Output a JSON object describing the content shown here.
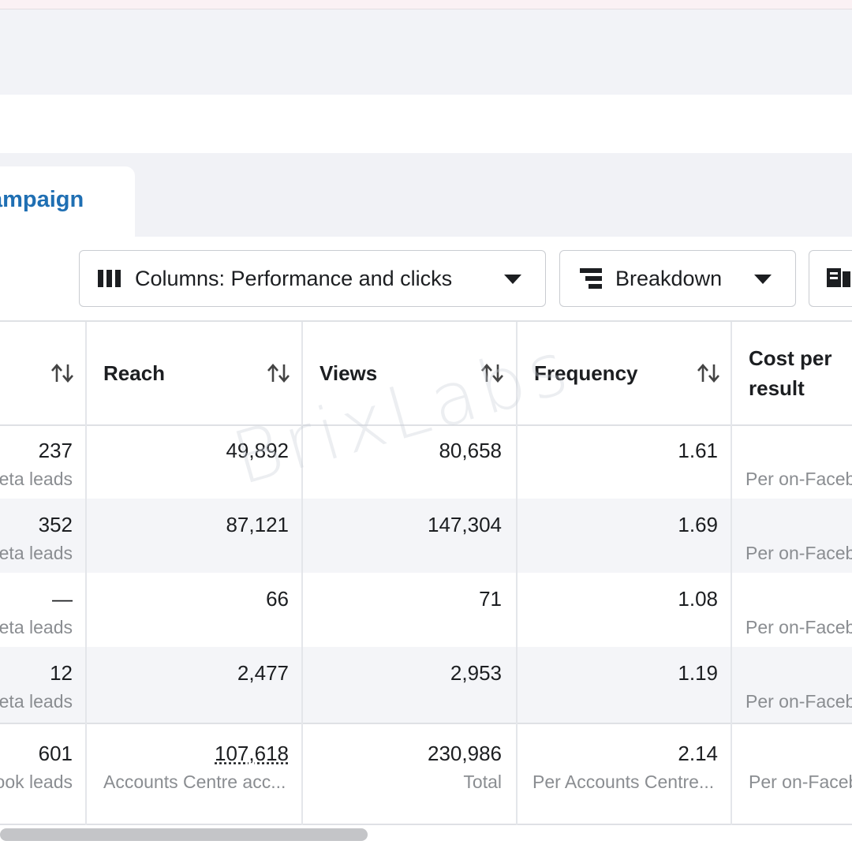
{
  "tab": {
    "label": "Campaign"
  },
  "toolbar": {
    "columns_label": "Columns: Performance and clicks",
    "breakdown_label": "Breakdown"
  },
  "table": {
    "headers": {
      "reach": "Reach",
      "views": "Views",
      "frequency": "Frequency",
      "cost_per_result": "Cost per result"
    },
    "rows": [
      {
        "results": "237",
        "results_sub": "Meta leads",
        "reach": "49,892",
        "views": "80,658",
        "frequency": "1.61",
        "cost_sub": "Per on-Facebook lead"
      },
      {
        "results": "352",
        "results_sub": "Meta leads",
        "reach": "87,121",
        "views": "147,304",
        "frequency": "1.69",
        "cost_sub": "Per on-Facebook lead"
      },
      {
        "results": "—",
        "results_sub": "Meta leads",
        "reach": "66",
        "views": "71",
        "frequency": "1.08",
        "cost_sub": "Per on-Facebook lead"
      },
      {
        "results": "12",
        "results_sub": "Meta leads",
        "reach": "2,477",
        "views": "2,953",
        "frequency": "1.19",
        "cost_sub": "Per on-Facebook lead"
      }
    ],
    "total": {
      "results": "601",
      "results_sub": "On-Facebook leads",
      "reach": "107,618",
      "reach_sub": "Accounts Centre acc...",
      "views": "230,986",
      "views_sub": "Total",
      "frequency": "2.14",
      "frequency_sub": "Per Accounts Centre...",
      "cost_sub": "Per on-Facebook lead"
    }
  },
  "watermark": "BrixLabs",
  "icons": {
    "columns": "columns-icon",
    "breakdown": "breakdown-icon",
    "export": "export-icon",
    "sort": "sort-arrows-icon",
    "caret": "caret-down-icon"
  }
}
